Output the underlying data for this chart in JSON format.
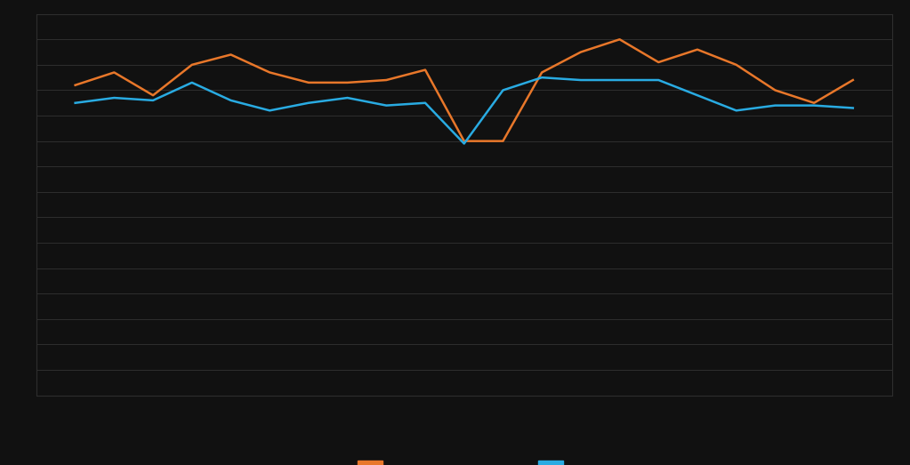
{
  "orange_values": [
    42,
    47,
    38,
    50,
    54,
    47,
    43,
    43,
    44,
    48,
    20,
    20,
    47,
    55,
    60,
    51,
    56,
    50,
    40,
    35,
    44
  ],
  "blue_values": [
    35,
    37,
    36,
    43,
    36,
    32,
    35,
    37,
    34,
    35,
    19,
    40,
    45,
    44,
    44,
    44,
    38,
    32,
    34,
    34,
    33
  ],
  "orange_color": "#e8772a",
  "blue_color": "#29abe2",
  "background_color": "#111111",
  "plot_bg_color": "#111111",
  "grid_color": "#2e2e2e",
  "ylim": [
    -80,
    70
  ],
  "ytick_positions": [
    60,
    50,
    40,
    30,
    20,
    10,
    0,
    -10,
    -20,
    -30,
    -40,
    -50,
    -60,
    -70,
    -80
  ],
  "legend_orange": "",
  "legend_blue": "",
  "line_width": 1.8
}
